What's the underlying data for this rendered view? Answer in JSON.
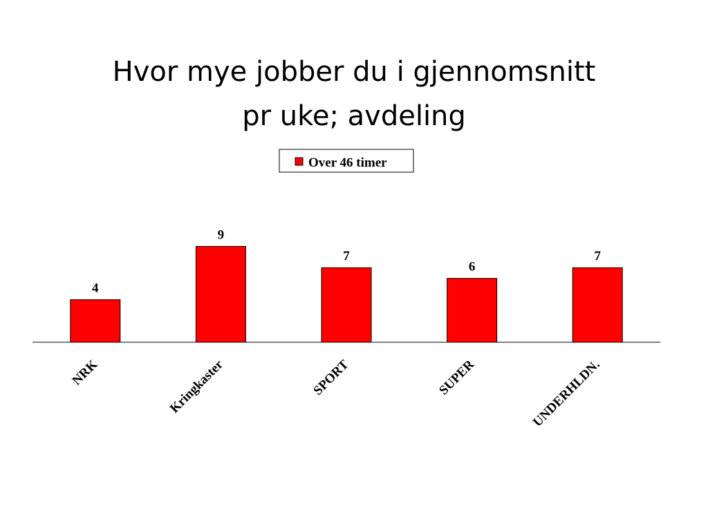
{
  "slide": {
    "title_line1": "Hvor mye jobber du i gjennomsnitt",
    "title_line2": "pr uke; avdeling"
  },
  "colors": {
    "bar_fill": "#ff0000",
    "bar_stroke": "#000000",
    "axis": "#000000"
  },
  "chart_data": {
    "type": "bar",
    "categories": [
      "NRK",
      "Kringkaster",
      "SPORT",
      "SUPER",
      "UNDERHLDN."
    ],
    "series": [
      {
        "name": "Over 46 timer",
        "values": [
          4,
          9,
          7,
          6,
          7
        ]
      }
    ],
    "data_labels": [
      "4",
      "9",
      "7",
      "6",
      "7"
    ],
    "title": "",
    "xlabel": "",
    "ylabel": "",
    "ylim": [
      0,
      9
    ],
    "grid": false,
    "legend_position": "top-center",
    "tick_label_rotation": "diagonal"
  }
}
